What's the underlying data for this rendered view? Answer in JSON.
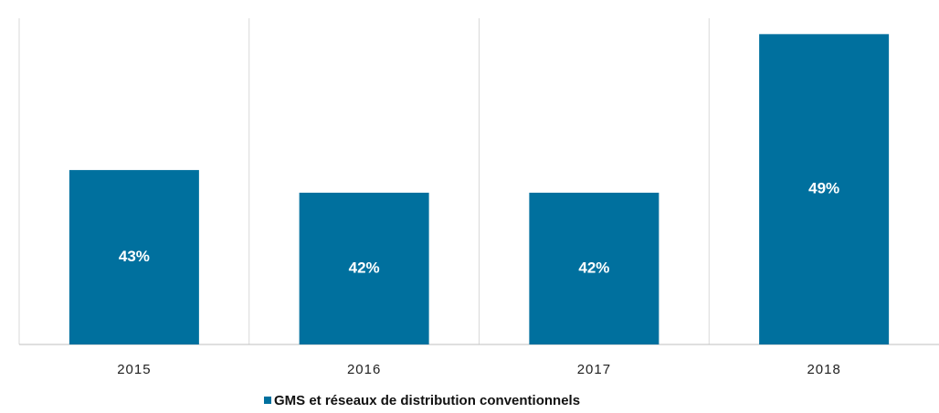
{
  "chart_data": {
    "type": "bar",
    "categories": [
      "2015",
      "2016",
      "2017",
      "2018"
    ],
    "series": [
      {
        "name": "GMS et réseaux de distribution conventionnels",
        "color": "#00709e",
        "values": [
          43,
          42,
          42,
          49
        ],
        "value_labels": [
          "43%",
          "42%",
          "42%",
          "49%"
        ]
      }
    ],
    "ylim": [
      35.3,
      49.7
    ],
    "legend": "bottom"
  }
}
